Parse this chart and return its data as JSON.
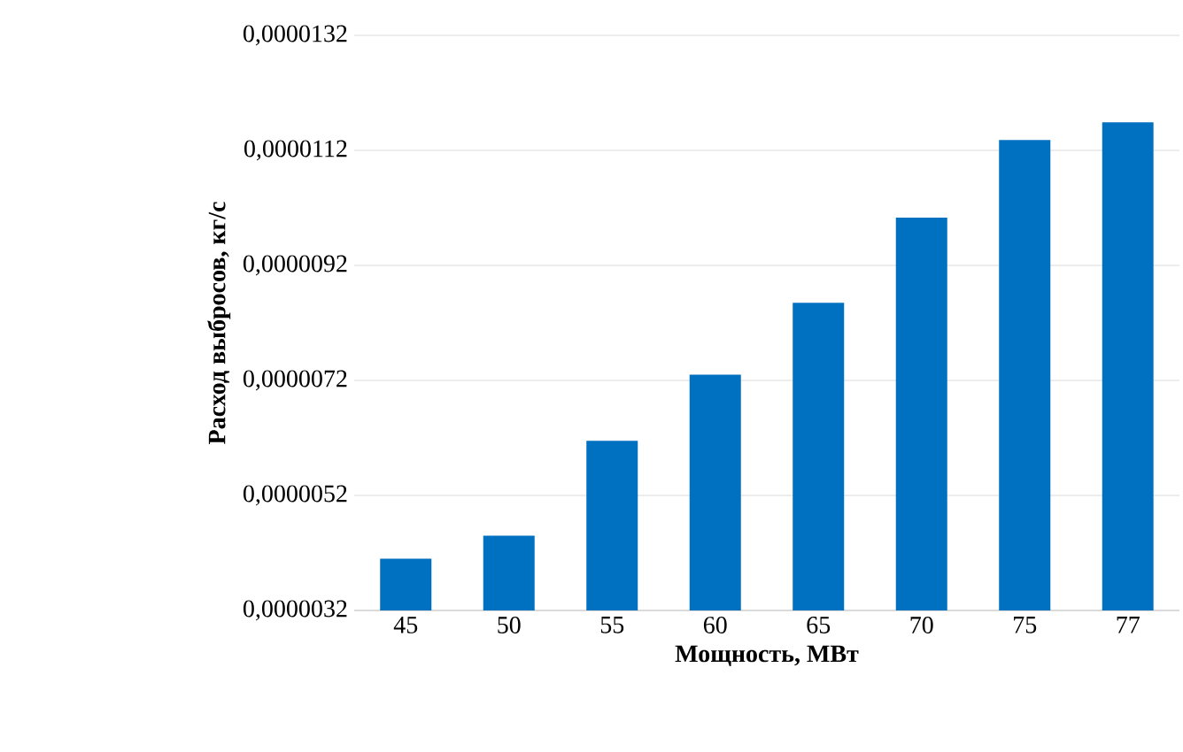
{
  "chart_data": {
    "type": "bar",
    "xlabel": "Мощность, МВт",
    "ylabel": "Расход выбросов, кг/с",
    "categories": [
      "45",
      "50",
      "55",
      "60",
      "65",
      "70",
      "75",
      "77"
    ],
    "values": [
      4.1e-06,
      4.5e-06,
      6.15e-06,
      7.3e-06,
      8.55e-06,
      1.003e-05,
      1.138e-05,
      1.169e-05
    ],
    "color": "#0070c0",
    "ylim": [
      3.2e-06,
      1.32e-05
    ],
    "yticks": [
      {
        "value": 3.2e-06,
        "label": "0,0000032"
      },
      {
        "value": 5.2e-06,
        "label": "0,0000052"
      },
      {
        "value": 7.2e-06,
        "label": "0,0000072"
      },
      {
        "value": 9.2e-06,
        "label": "0,0000092"
      },
      {
        "value": 1.12e-05,
        "label": "0,0000112"
      },
      {
        "value": 1.32e-05,
        "label": "0,0000132"
      }
    ],
    "grid": "y"
  }
}
